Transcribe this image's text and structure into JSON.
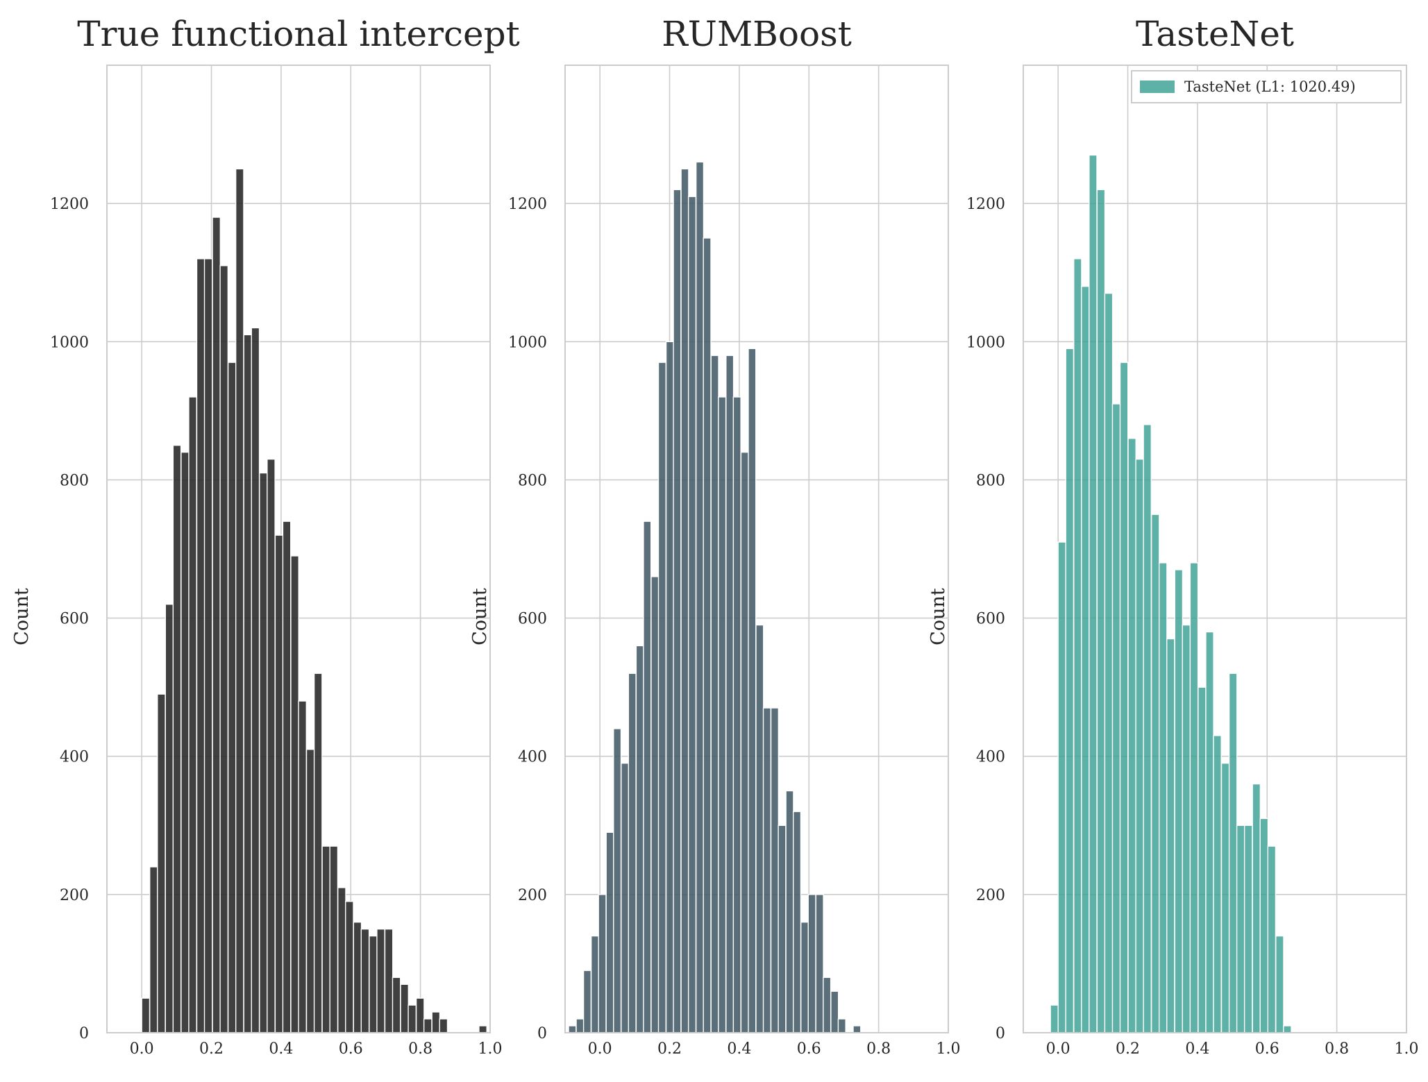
{
  "chart_data": [
    {
      "type": "bar",
      "title": "True functional intercept",
      "xlabel": "",
      "ylabel": "Count",
      "xlim": [
        -0.1,
        1.0
      ],
      "ylim": [
        0,
        1400
      ],
      "xticks": [
        "0.0",
        "0.2",
        "0.4",
        "0.6",
        "0.8",
        "1.0"
      ],
      "yticks": [
        "0",
        "200",
        "400",
        "600",
        "800",
        "1000",
        "1200"
      ],
      "grid": true,
      "legend": null,
      "color": "#262626",
      "opacity": 0.88,
      "bin_width": 0.0225,
      "bins": [
        [
          0.0,
          50
        ],
        [
          0.023,
          240
        ],
        [
          0.045,
          490
        ],
        [
          0.068,
          620
        ],
        [
          0.09,
          850
        ],
        [
          0.113,
          840
        ],
        [
          0.135,
          920
        ],
        [
          0.158,
          1120
        ],
        [
          0.18,
          1120
        ],
        [
          0.203,
          1180
        ],
        [
          0.225,
          1110
        ],
        [
          0.248,
          970
        ],
        [
          0.27,
          1250
        ],
        [
          0.293,
          1010
        ],
        [
          0.315,
          1020
        ],
        [
          0.338,
          810
        ],
        [
          0.36,
          830
        ],
        [
          0.383,
          720
        ],
        [
          0.405,
          740
        ],
        [
          0.428,
          690
        ],
        [
          0.45,
          480
        ],
        [
          0.473,
          410
        ],
        [
          0.495,
          520
        ],
        [
          0.518,
          270
        ],
        [
          0.54,
          270
        ],
        [
          0.563,
          210
        ],
        [
          0.585,
          190
        ],
        [
          0.608,
          160
        ],
        [
          0.63,
          150
        ],
        [
          0.653,
          140
        ],
        [
          0.675,
          150
        ],
        [
          0.698,
          150
        ],
        [
          0.72,
          80
        ],
        [
          0.743,
          70
        ],
        [
          0.765,
          40
        ],
        [
          0.788,
          50
        ],
        [
          0.81,
          20
        ],
        [
          0.833,
          30
        ],
        [
          0.855,
          20
        ],
        [
          0.968,
          10
        ]
      ]
    },
    {
      "type": "bar",
      "title": "RUMBoost",
      "xlabel": "",
      "ylabel": "Count",
      "xlim": [
        -0.1,
        1.0
      ],
      "ylim": [
        0,
        1400
      ],
      "xticks": [
        "0.0",
        "0.2",
        "0.4",
        "0.6",
        "0.8",
        "1.0"
      ],
      "yticks": [
        "0",
        "200",
        "400",
        "600",
        "800",
        "1000",
        "1200"
      ],
      "grid": true,
      "legend": null,
      "color": "#3e5664",
      "opacity": 0.85,
      "bin_width": 0.0215,
      "bins": [
        [
          -0.09,
          10
        ],
        [
          -0.068,
          20
        ],
        [
          -0.047,
          90
        ],
        [
          -0.025,
          140
        ],
        [
          -0.004,
          200
        ],
        [
          0.018,
          290
        ],
        [
          0.039,
          440
        ],
        [
          0.061,
          390
        ],
        [
          0.082,
          520
        ],
        [
          0.104,
          560
        ],
        [
          0.125,
          740
        ],
        [
          0.147,
          660
        ],
        [
          0.168,
          970
        ],
        [
          0.19,
          1000
        ],
        [
          0.211,
          1220
        ],
        [
          0.233,
          1250
        ],
        [
          0.254,
          1210
        ],
        [
          0.276,
          1260
        ],
        [
          0.297,
          1150
        ],
        [
          0.319,
          980
        ],
        [
          0.34,
          920
        ],
        [
          0.362,
          980
        ],
        [
          0.383,
          920
        ],
        [
          0.405,
          840
        ],
        [
          0.426,
          990
        ],
        [
          0.448,
          590
        ],
        [
          0.469,
          470
        ],
        [
          0.491,
          470
        ],
        [
          0.512,
          300
        ],
        [
          0.534,
          350
        ],
        [
          0.555,
          320
        ],
        [
          0.577,
          160
        ],
        [
          0.598,
          200
        ],
        [
          0.62,
          200
        ],
        [
          0.641,
          80
        ],
        [
          0.663,
          60
        ],
        [
          0.684,
          20
        ],
        [
          0.727,
          10
        ]
      ]
    },
    {
      "type": "bar",
      "title": "TasteNet",
      "xlabel": "",
      "ylabel": "Count",
      "xlim": [
        -0.1,
        1.0
      ],
      "ylim": [
        0,
        1400
      ],
      "xticks": [
        "0.0",
        "0.2",
        "0.4",
        "0.6",
        "0.8",
        "1.0"
      ],
      "yticks": [
        "0",
        "200",
        "400",
        "600",
        "800",
        "1000",
        "1200"
      ],
      "grid": true,
      "legend": "top-right",
      "series": [
        {
          "name": "TasteNet (L1: 1020.49)"
        }
      ],
      "color": "#3aa093",
      "opacity": 0.82,
      "bin_width": 0.0223,
      "bins": [
        [
          -0.022,
          40
        ],
        [
          0.0,
          710
        ],
        [
          0.022,
          990
        ],
        [
          0.045,
          1120
        ],
        [
          0.067,
          1080
        ],
        [
          0.089,
          1270
        ],
        [
          0.112,
          1220
        ],
        [
          0.134,
          1070
        ],
        [
          0.156,
          910
        ],
        [
          0.178,
          970
        ],
        [
          0.201,
          860
        ],
        [
          0.223,
          830
        ],
        [
          0.245,
          880
        ],
        [
          0.268,
          750
        ],
        [
          0.29,
          680
        ],
        [
          0.312,
          570
        ],
        [
          0.335,
          670
        ],
        [
          0.357,
          590
        ],
        [
          0.379,
          680
        ],
        [
          0.402,
          500
        ],
        [
          0.424,
          580
        ],
        [
          0.446,
          430
        ],
        [
          0.469,
          390
        ],
        [
          0.491,
          520
        ],
        [
          0.513,
          300
        ],
        [
          0.535,
          300
        ],
        [
          0.558,
          360
        ],
        [
          0.58,
          310
        ],
        [
          0.602,
          270
        ],
        [
          0.625,
          140
        ],
        [
          0.647,
          10
        ]
      ]
    }
  ]
}
